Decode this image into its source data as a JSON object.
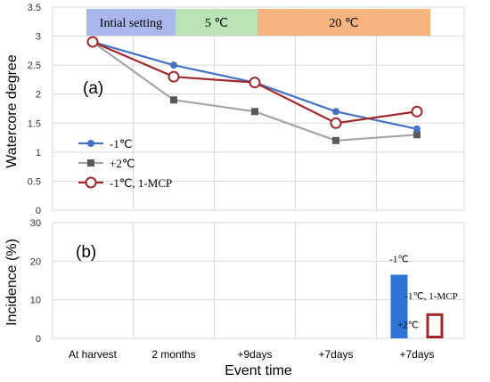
{
  "chart_data": [
    {
      "type": "line",
      "panel_label": "(a)",
      "ylabel": "Watercore degree",
      "ylim": [
        0,
        3.5
      ],
      "yticks": [
        "0",
        "0.5",
        "1",
        "1.5",
        "2",
        "2.5",
        "3",
        "3.5"
      ],
      "categories": [
        "At harvest",
        "2 months",
        "+9days",
        "+7days",
        "+7days"
      ],
      "grid": true,
      "legend_position": "left",
      "phases": [
        {
          "label": "Intial setting",
          "color": "#a9b8e8"
        },
        {
          "label": "5 ℃",
          "color": "#b9e3b4"
        },
        {
          "label": "20 ℃",
          "color": "#f7b47f"
        }
      ],
      "series": [
        {
          "name": "-1℃",
          "values": [
            2.9,
            2.5,
            2.2,
            1.7,
            1.4
          ],
          "color": "#4472c4",
          "marker": "circle-filled"
        },
        {
          "name": "+2℃",
          "values": [
            2.9,
            1.9,
            1.7,
            1.2,
            1.3
          ],
          "color": "#a5a5a5",
          "marker": "square"
        },
        {
          "name": "-1℃, 1-MCP",
          "values": [
            2.9,
            2.3,
            2.2,
            1.5,
            1.7
          ],
          "color": "#a0282b",
          "marker": "circle-open"
        }
      ]
    },
    {
      "type": "bar",
      "panel_label": "(b)",
      "ylabel": "Incidence (%)",
      "xlabel": "Event time",
      "ylim": [
        0,
        30
      ],
      "yticks": [
        "0",
        "10",
        "20",
        "30"
      ],
      "categories": [
        "At harvest",
        "2 months",
        "+9days",
        "+7days",
        "+7days"
      ],
      "grid": true,
      "series": [
        {
          "name": "-1℃",
          "values": [
            0,
            0,
            0,
            0,
            16.5
          ],
          "color": "#2e75d6",
          "label": "-1℃"
        },
        {
          "name": "+2℃",
          "values": [
            0,
            0,
            0,
            0,
            0
          ],
          "color": "#a5a5a5",
          "label": "+2℃"
        },
        {
          "name": "-1℃, 1-MCP",
          "values": [
            0,
            0,
            0,
            0,
            6.5
          ],
          "color": "#a0282b",
          "label": "-1℃, 1-MCP",
          "style": "outline"
        }
      ]
    }
  ]
}
